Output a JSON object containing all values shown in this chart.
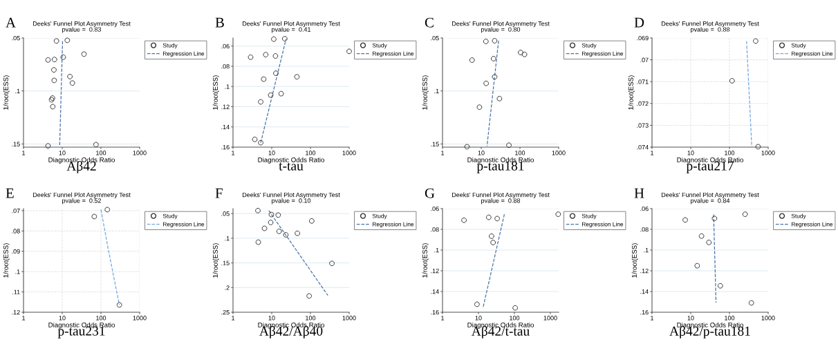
{
  "chart_data": [
    {
      "type": "scatter",
      "title": "Deeks' Funnel Plot Asymmetry Test",
      "subtitle": "pvalue =  0.83",
      "annotations": [
        "A",
        "Aβ42"
      ],
      "xlabel": "Diagnostic Odds Ratio",
      "ylabel": "1/root(ESS)",
      "log": "x",
      "grid": "y",
      "legend": "right",
      "xlim": [
        1,
        1000
      ],
      "xticks": [
        1,
        10,
        100,
        1000
      ],
      "ylim": [
        0.153,
        0.05
      ],
      "yticks": [
        {
          "value": 0.05,
          "label": ".05"
        },
        {
          "value": 0.1,
          "label": ".1"
        },
        {
          "value": 0.15,
          "label": ".15"
        }
      ],
      "series": [
        {
          "name": "Study",
          "marker": "circle",
          "color": "#333333",
          "x": [
            7.1,
            13.5,
            36.5,
            10.6,
            4.3,
            6.3,
            6.1,
            15.8,
            6.2,
            18.3,
            5.6,
            5.3,
            5.7,
            4.3,
            74.5
          ],
          "values": [
            0.0528,
            0.0522,
            0.0652,
            0.0681,
            0.0707,
            0.0703,
            0.0801,
            0.0864,
            0.09,
            0.0925,
            0.1067,
            0.1083,
            0.1148,
            0.1518,
            0.1506
          ]
        },
        {
          "name": "Regression Line",
          "type": "line",
          "line_style": "dashed",
          "color": "#4a72a8",
          "x": [
            10.2,
            8.6
          ],
          "values": [
            0.053,
            0.1518
          ]
        }
      ]
    },
    {
      "type": "scatter",
      "title": "Deeks' Funnel Plot Asymmetry Test",
      "subtitle": "pvalue =  0.41",
      "annotations": [
        "B",
        "t-tau"
      ],
      "xlabel": "Diagnostic Odds Ratio",
      "ylabel": "1/root(ESS)",
      "log": "x",
      "grid": "y",
      "legend": "right",
      "xlim": [
        1,
        1000
      ],
      "xticks": [
        1,
        10,
        100,
        1000
      ],
      "ylim": [
        0.16,
        0.052
      ],
      "yticks": [
        {
          "value": 0.06,
          "label": ".06"
        },
        {
          "value": 0.08,
          "label": ".08"
        },
        {
          "value": 0.1,
          "label": ".1"
        },
        {
          "value": 0.12,
          "label": ".12"
        },
        {
          "value": 0.14,
          "label": ".14"
        },
        {
          "value": 0.16,
          "label": ".16"
        }
      ],
      "series": [
        {
          "name": "Study",
          "marker": "circle",
          "color": "#333333",
          "x": [
            11.3,
            21.7,
            2.85,
            7.0,
            12.5,
            1000,
            12.8,
            6.2,
            44.7,
            9.4,
            17.5,
            5.2,
            3.65,
            5.2
          ],
          "values": [
            0.0531,
            0.0527,
            0.071,
            0.0685,
            0.0698,
            0.0652,
            0.0869,
            0.0927,
            0.0904,
            0.1085,
            0.1071,
            0.1152,
            0.1523,
            0.1556
          ]
        },
        {
          "name": "Regression Line",
          "type": "line",
          "line_style": "dashed",
          "color": "#4a72a8",
          "x": [
            5.2,
            23.4
          ],
          "values": [
            0.1556,
            0.0531
          ]
        }
      ]
    },
    {
      "type": "scatter",
      "title": "Deeks' Funnel Plot Asymmetry Test",
      "subtitle": "pvalue =  0.80",
      "annotations": [
        "C",
        "p-tau181"
      ],
      "xlabel": "Diagnostic Odds Ratio",
      "ylabel": "1/root(ESS)",
      "log": "x",
      "grid": "y",
      "legend": "right",
      "xlim": [
        1,
        1000
      ],
      "xticks": [
        1,
        10,
        100,
        1000
      ],
      "ylim": [
        0.153,
        0.05
      ],
      "yticks": [
        {
          "value": 0.05,
          "label": ".05"
        },
        {
          "value": 0.1,
          "label": ".1"
        },
        {
          "value": 0.15,
          "label": ".15"
        }
      ],
      "series": [
        {
          "name": "Study",
          "marker": "circle",
          "color": "#333333",
          "x": [
            13.2,
            22.2,
            104,
            131,
            5.8,
            20.8,
            22.2,
            13.4,
            29.6,
            9.0,
            4.3,
            51.9
          ],
          "values": [
            0.0532,
            0.0526,
            0.0637,
            0.0655,
            0.0709,
            0.0695,
            0.0867,
            0.0928,
            0.1072,
            0.1153,
            0.1526,
            0.1512
          ]
        },
        {
          "name": "Regression Line",
          "type": "line",
          "line_style": "dashed",
          "color": "#4a72a8",
          "x": [
            28.1,
            14.1
          ],
          "values": [
            0.0526,
            0.152
          ]
        }
      ]
    },
    {
      "type": "scatter",
      "title": "Deeks' Funnel Plot Asymmetry Test",
      "subtitle": "pvalue =  0.88",
      "annotations": [
        "D",
        "p-tau217"
      ],
      "xlabel": "Diagnostic Odds Ratio",
      "ylabel": "1/root(ESS)",
      "log": "x",
      "grid": true,
      "legend": "right",
      "xlim": [
        1,
        1000
      ],
      "xticks": [
        1,
        10,
        100,
        1000
      ],
      "ylim": [
        0.074,
        0.069
      ],
      "yticks": [
        {
          "value": 0.069,
          "label": ".069"
        },
        {
          "value": 0.07,
          "label": ".07"
        },
        {
          "value": 0.071,
          "label": ".071"
        },
        {
          "value": 0.072,
          "label": ".072"
        },
        {
          "value": 0.073,
          "label": ".073"
        },
        {
          "value": 0.074,
          "label": ".074"
        }
      ],
      "series": [
        {
          "name": "Study",
          "marker": "circle",
          "color": "#333333",
          "x": [
            475,
            117,
            550
          ],
          "values": [
            0.06914,
            0.07096,
            0.07398
          ]
        },
        {
          "name": "Regression Line",
          "type": "line",
          "line_style": "dashed",
          "color": "#6fa8e0",
          "x": [
            277,
            377
          ],
          "values": [
            0.06914,
            0.07398
          ]
        }
      ]
    },
    {
      "type": "scatter",
      "title": "Deeks' Funnel Plot Asymmetry Test",
      "subtitle": "pvalue =  0.52",
      "annotations": [
        "E",
        "p-tau231"
      ],
      "xlabel": "Diagnostic Odds Ratio",
      "ylabel": "1/root(ESS)",
      "log": "x",
      "grid": true,
      "legend": "right",
      "xlim": [
        1,
        1000
      ],
      "xticks": [
        1,
        10,
        100,
        1000
      ],
      "ylim": [
        0.12,
        0.069
      ],
      "yticks": [
        {
          "value": 0.07,
          "label": ".07"
        },
        {
          "value": 0.08,
          "label": ".08"
        },
        {
          "value": 0.09,
          "label": ".09"
        },
        {
          "value": 0.1,
          "label": ".1"
        },
        {
          "value": 0.11,
          "label": ".11"
        },
        {
          "value": 0.12,
          "label": ".12"
        }
      ],
      "series": [
        {
          "name": "Study",
          "marker": "circle",
          "color": "#333333",
          "x": [
            67.3,
            146,
            299
          ],
          "values": [
            0.0729,
            0.0695,
            0.1164
          ]
        },
        {
          "name": "Regression Line",
          "type": "line",
          "line_style": "dashed",
          "color": "#6fa8e0",
          "x": [
            100,
            158,
            299
          ],
          "values": [
            0.0695,
            0.09,
            0.1164
          ]
        }
      ]
    },
    {
      "type": "scatter",
      "title": "Deeks' Funnel Plot Asymmetry Test",
      "subtitle": "pvalue =  0.10",
      "annotations": [
        "F",
        "Aβ42/Aβ40"
      ],
      "xlabel": "Diagnostic Odds Ratio",
      "ylabel": "1/root(ESS)",
      "log": "x",
      "grid": "y",
      "legend": "right",
      "xlim": [
        1,
        1000
      ],
      "xticks": [
        1,
        10,
        100,
        1000
      ],
      "ylim": [
        0.25,
        0.04
      ],
      "yticks": [
        {
          "value": 0.05,
          "label": ".05"
        },
        {
          "value": 0.1,
          "label": ".1"
        },
        {
          "value": 0.15,
          "label": ".15"
        },
        {
          "value": 0.2,
          "label": ".2"
        },
        {
          "value": 0.25,
          "label": ".25"
        }
      ],
      "series": [
        {
          "name": "Study",
          "marker": "circle",
          "color": "#333333",
          "x": [
            4.4,
            9.8,
            14.7,
            9.4,
            108,
            6.5,
            15.5,
            23.1,
            46.0,
            4.5,
            358,
            92.7
          ],
          "values": [
            0.044,
            0.052,
            0.053,
            0.068,
            0.065,
            0.08,
            0.086,
            0.093,
            0.09,
            0.108,
            0.151,
            0.217
          ]
        },
        {
          "name": "Regression Line",
          "type": "line",
          "line_style": "dashed",
          "color": "#4a72a8",
          "x": [
            8.4,
            282
          ],
          "values": [
            0.044,
            0.216
          ]
        }
      ]
    },
    {
      "type": "scatter",
      "title": "Deeks' Funnel Plot Asymmetry Test",
      "subtitle": "pvalue =  0.88",
      "annotations": [
        "G",
        "Aβ42/t-tau"
      ],
      "xlabel": "Diagnostic Odds Ratio",
      "ylabel": "1/root(ESS)",
      "log": "x",
      "grid": "y",
      "legend": "right",
      "xlim": [
        1,
        1700
      ],
      "xticks": [
        1,
        10,
        100,
        1000
      ],
      "ylim": [
        0.16,
        0.06
      ],
      "yticks": [
        {
          "value": 0.06,
          "label": ".06"
        },
        {
          "value": 0.08,
          "label": ".08"
        },
        {
          "value": 0.1,
          "label": ".1"
        },
        {
          "value": 0.12,
          "label": ".12"
        },
        {
          "value": 0.14,
          "label": ".14"
        },
        {
          "value": 0.16,
          "label": ".16"
        }
      ],
      "series": [
        {
          "name": "Study",
          "marker": "circle",
          "color": "#333333",
          "x": [
            3.96,
            19.3,
            33.2,
            1648,
            23.1,
            25.5,
            9.1,
            105
          ],
          "values": [
            0.0712,
            0.0684,
            0.0696,
            0.0654,
            0.0866,
            0.0927,
            0.1523,
            0.1558
          ]
        },
        {
          "name": "Regression Line",
          "type": "line",
          "line_style": "dashed",
          "color": "#4a72a8",
          "x": [
            52.5,
            13.3
          ],
          "values": [
            0.0654,
            0.1561
          ]
        }
      ]
    },
    {
      "type": "scatter",
      "title": "Deeks' Funnel Plot Asymmetry Test",
      "subtitle": "pvalue =  0.84",
      "annotations": [
        "H",
        "Aβ42/p-tau181"
      ],
      "xlabel": "Diagnostic Odds Ratio",
      "ylabel": "1/root(ESS)",
      "log": "x",
      "grid": "y",
      "legend": "right",
      "xlim": [
        1,
        1000
      ],
      "xticks": [
        1,
        10,
        100,
        1000
      ],
      "ylim": [
        0.16,
        0.06
      ],
      "yticks": [
        {
          "value": 0.06,
          "label": ".06"
        },
        {
          "value": 0.08,
          "label": ".08"
        },
        {
          "value": 0.1,
          "label": ".1"
        },
        {
          "value": 0.12,
          "label": ".12"
        },
        {
          "value": 0.14,
          "label": ".14"
        },
        {
          "value": 0.16,
          "label": ".16"
        }
      ],
      "series": [
        {
          "name": "Study",
          "marker": "circle",
          "color": "#333333",
          "x": [
            7.2,
            41.1,
            254,
            19.0,
            29.5,
            14.7,
            58.1,
            368
          ],
          "values": [
            0.0709,
            0.0695,
            0.0654,
            0.0865,
            0.0926,
            0.1151,
            0.1345,
            0.151
          ]
        },
        {
          "name": "Regression Line",
          "type": "line",
          "line_style": "dashed",
          "color": "#4a72a8",
          "x": [
            39.0,
            45.0
          ],
          "values": [
            0.0656,
            0.1506
          ]
        }
      ]
    }
  ]
}
